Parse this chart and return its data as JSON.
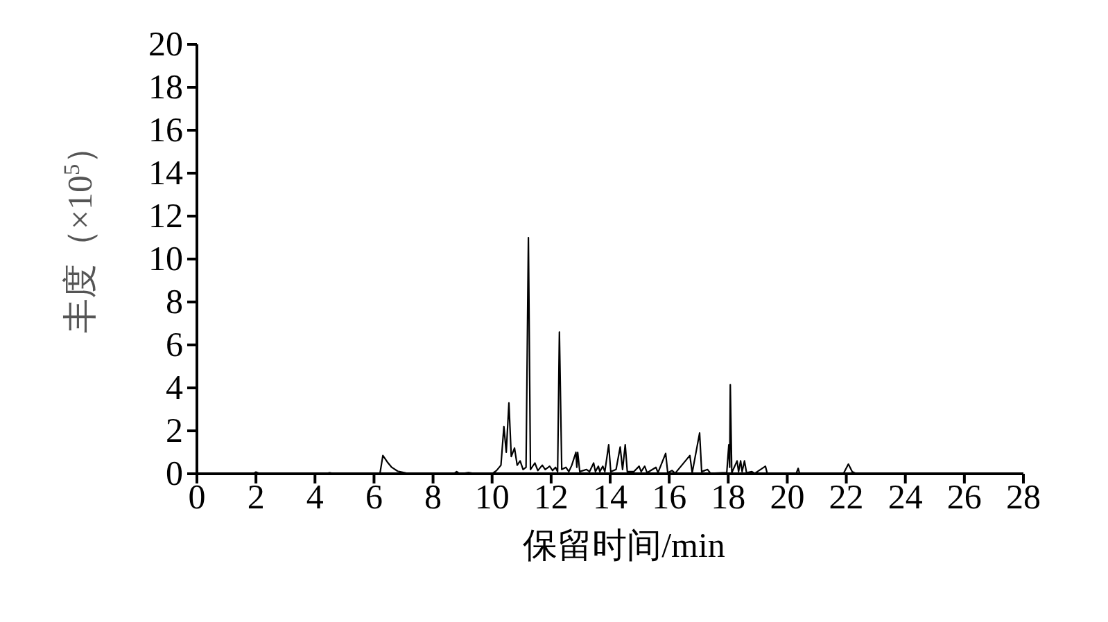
{
  "chart_data": {
    "type": "line",
    "xlabel": "保留时间/min",
    "ylabel": "丰度（×10$^{5}$）",
    "xlim": [
      0,
      28
    ],
    "ylim": [
      0,
      20
    ],
    "xticks": [
      0,
      2,
      4,
      6,
      8,
      10,
      12,
      14,
      16,
      18,
      20,
      22,
      24,
      26,
      28
    ],
    "yticks": [
      0,
      2,
      4,
      6,
      8,
      10,
      12,
      14,
      16,
      18,
      20
    ],
    "grid": false,
    "line_style": "solid",
    "marker": "none",
    "series": [
      {
        "color": "#000000",
        "x": [
          0,
          1.9,
          2.0,
          2.15,
          4.3,
          4.5,
          4.7,
          6.2,
          6.3,
          6.45,
          6.6,
          6.8,
          7.1,
          7.4,
          8.7,
          8.8,
          8.9,
          9.2,
          9.5,
          10.0,
          10.15,
          10.3,
          10.4,
          10.48,
          10.57,
          10.65,
          10.76,
          10.85,
          10.95,
          11.05,
          11.15,
          11.23,
          11.3,
          11.45,
          11.55,
          11.7,
          11.8,
          11.95,
          12.05,
          12.15,
          12.22,
          12.28,
          12.36,
          12.5,
          12.6,
          12.7,
          12.84,
          12.87,
          12.9,
          12.97,
          13.2,
          13.3,
          13.44,
          13.5,
          13.6,
          13.65,
          13.75,
          13.82,
          13.95,
          14.02,
          14.2,
          14.34,
          14.42,
          14.51,
          14.58,
          14.8,
          14.98,
          15.05,
          15.17,
          15.25,
          15.55,
          15.62,
          15.88,
          15.95,
          16.1,
          16.2,
          16.7,
          16.78,
          17.03,
          17.1,
          17.3,
          17.4,
          17.95,
          18.02,
          18.05,
          18.07,
          18.12,
          18.3,
          18.35,
          18.42,
          18.47,
          18.55,
          18.62,
          18.8,
          18.9,
          19.26,
          19.32,
          20.3,
          20.37,
          20.42,
          21.9,
          22.07,
          22.2,
          22.35,
          22.5
        ],
        "values": [
          0,
          0,
          0.08,
          0,
          0,
          0.05,
          0,
          0,
          0.85,
          0.55,
          0.3,
          0.12,
          0.03,
          0,
          0,
          0.1,
          0,
          0.05,
          0,
          0,
          0.15,
          0.4,
          2.2,
          1.0,
          3.3,
          0.8,
          1.2,
          0.4,
          0.6,
          0.2,
          0.3,
          11.0,
          0.2,
          0.5,
          0.15,
          0.4,
          0.2,
          0.35,
          0.15,
          0.3,
          0.1,
          6.6,
          0.2,
          0.3,
          0.1,
          0.4,
          1.0,
          0.3,
          1.0,
          0.1,
          0.2,
          0.1,
          0.5,
          0.1,
          0.35,
          0.1,
          0.35,
          0.1,
          1.35,
          0.1,
          0.2,
          1.25,
          0.2,
          1.35,
          0.1,
          0.1,
          0.35,
          0.1,
          0.35,
          0.05,
          0.3,
          0.05,
          0.95,
          0.05,
          0.15,
          0.02,
          0.85,
          0.05,
          1.9,
          0.1,
          0.2,
          0.02,
          0.05,
          1.35,
          0.3,
          4.15,
          0.05,
          0.6,
          0.1,
          0.6,
          0.1,
          0.6,
          0.05,
          0.1,
          0.02,
          0.35,
          0.02,
          0,
          0.25,
          0,
          0,
          0.45,
          0.1,
          0,
          0
        ]
      }
    ]
  }
}
